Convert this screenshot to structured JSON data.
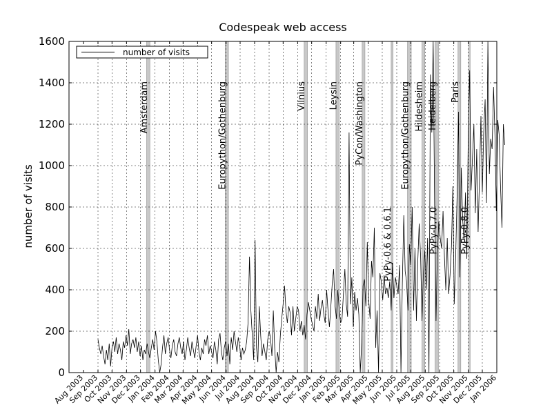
{
  "chart_data": {
    "type": "line",
    "title": "Codespeak web access",
    "xlabel": "",
    "ylabel": "number of visits",
    "ylim": [
      0,
      1600
    ],
    "xlim": [
      "2003-07-01",
      "2006-01-01"
    ],
    "grid": true,
    "legend": {
      "placement": "top-left",
      "entries": [
        "number of visits"
      ]
    },
    "y_ticks": [
      0,
      200,
      400,
      600,
      800,
      1000,
      1200,
      1400,
      1600
    ],
    "x_ticks": [
      {
        "date": "2003-08-01",
        "label": "Aug 2003"
      },
      {
        "date": "2003-09-01",
        "label": "Sep 2003"
      },
      {
        "date": "2003-10-01",
        "label": "Oct 2003"
      },
      {
        "date": "2003-11-01",
        "label": "Nov 2003"
      },
      {
        "date": "2003-12-01",
        "label": "Dec 2003"
      },
      {
        "date": "2004-01-01",
        "label": "Jan 2004"
      },
      {
        "date": "2004-02-01",
        "label": "Feb 2004"
      },
      {
        "date": "2004-03-01",
        "label": "Mar 2004"
      },
      {
        "date": "2004-04-01",
        "label": "Apr 2004"
      },
      {
        "date": "2004-05-01",
        "label": "May 2004"
      },
      {
        "date": "2004-06-01",
        "label": "Jun 2004"
      },
      {
        "date": "2004-07-01",
        "label": "Jul 2004"
      },
      {
        "date": "2004-08-01",
        "label": "Aug 2004"
      },
      {
        "date": "2004-09-01",
        "label": "Sep 2004"
      },
      {
        "date": "2004-10-01",
        "label": "Oct 2004"
      },
      {
        "date": "2004-11-01",
        "label": "Nov 2004"
      },
      {
        "date": "2004-12-01",
        "label": "Dec 2004"
      },
      {
        "date": "2005-01-01",
        "label": "Jan 2005"
      },
      {
        "date": "2005-02-01",
        "label": "Feb 2005"
      },
      {
        "date": "2005-03-01",
        "label": "Mar 2005"
      },
      {
        "date": "2005-04-01",
        "label": "Apr 2005"
      },
      {
        "date": "2005-05-01",
        "label": "May 2005"
      },
      {
        "date": "2005-06-01",
        "label": "Jun 2005"
      },
      {
        "date": "2005-07-01",
        "label": "Jul 2005"
      },
      {
        "date": "2005-08-01",
        "label": "Aug 2005"
      },
      {
        "date": "2005-09-01",
        "label": "Sep 2005"
      },
      {
        "date": "2005-10-01",
        "label": "Oct 2005"
      },
      {
        "date": "2005-11-01",
        "label": "Nov 2005"
      },
      {
        "date": "2005-12-01",
        "label": "Dec 2005"
      },
      {
        "date": "2006-01-01",
        "label": "Jan 2006"
      }
    ],
    "events": [
      {
        "label": "Amsterdam",
        "start": "2003-12-14",
        "end": "2003-12-21"
      },
      {
        "label": "Europython/Gothenburg",
        "start": "2004-05-30",
        "end": "2004-06-06"
      },
      {
        "label": "Vilnius",
        "start": "2004-11-15",
        "end": "2004-11-22"
      },
      {
        "label": "Leysin",
        "start": "2005-01-22",
        "end": "2005-01-29"
      },
      {
        "label": "PyCon/Washington",
        "start": "2005-03-19",
        "end": "2005-03-25"
      },
      {
        "label": "PyPy-0.6 & 0.6.1",
        "start": "2005-05-20",
        "end": "2005-05-24"
      },
      {
        "label": "Europython/Gothenburg",
        "start": "2005-06-24",
        "end": "2005-07-02"
      },
      {
        "label": "Hildesheim",
        "start": "2005-07-25",
        "end": "2005-07-31"
      },
      {
        "label": "PyPy-0.7.0",
        "start": "2005-08-26",
        "end": "2005-08-29"
      },
      {
        "label": "Heidelberg",
        "start": "2005-08-22",
        "end": "2005-08-29"
      },
      {
        "label": "Paris",
        "start": "2005-10-10",
        "end": "2005-10-16"
      },
      {
        "label": "PyPy-0.8.0",
        "start": "2005-11-02",
        "end": "2005-11-04"
      }
    ],
    "series": [
      {
        "name": "number of visits",
        "color": "#000000",
        "sample_interval_days": 3,
        "start": "2003-09-01",
        "values": [
          160,
          120,
          90,
          130,
          80,
          40,
          110,
          60,
          140,
          30,
          120,
          150,
          100,
          170,
          90,
          140,
          110,
          60,
          150,
          120,
          180,
          130,
          210,
          90,
          140,
          160,
          120,
          170,
          100,
          150,
          80,
          130,
          60,
          110,
          90,
          140,
          100,
          70,
          120,
          160,
          110,
          200,
          150,
          60,
          0,
          40,
          120,
          180,
          90,
          140,
          170,
          110,
          70,
          130,
          160,
          100,
          80,
          140,
          170,
          120,
          90,
          150,
          60,
          110,
          170,
          120,
          80,
          150,
          110,
          70,
          130,
          180,
          100,
          60,
          120,
          90,
          160,
          130,
          180,
          90,
          130,
          100,
          70,
          150,
          110,
          40,
          160,
          190,
          100,
          60,
          120,
          150,
          80,
          140,
          40,
          170,
          110,
          200,
          150,
          100,
          170,
          130,
          60,
          120,
          90,
          110,
          150,
          240,
          560,
          300,
          180,
          60,
          640,
          120,
          50,
          320,
          180,
          80,
          140,
          100,
          60,
          160,
          200,
          170,
          80,
          300,
          120,
          0,
          100,
          50,
          180,
          260,
          330,
          420,
          300,
          240,
          320,
          290,
          180,
          320,
          200,
          260,
          320,
          300,
          200,
          250,
          180,
          230,
          160,
          280,
          340,
          300,
          260,
          230,
          200,
          320,
          260,
          380,
          250,
          310,
          350,
          280,
          240,
          400,
          300,
          220,
          320,
          430,
          500,
          320,
          260,
          400,
          300,
          240,
          260,
          380,
          500,
          330,
          270,
          1160,
          330,
          460,
          220,
          390,
          300,
          360,
          280,
          0,
          140,
          420,
          450,
          320,
          630,
          350,
          260,
          540,
          460,
          700,
          120,
          300,
          0,
          480,
          440,
          350,
          470,
          380,
          410,
          360,
          440,
          300,
          530,
          360,
          460,
          420,
          380,
          520,
          0,
          430,
          760,
          490,
          440,
          300,
          620,
          520,
          800,
          300,
          600,
          250,
          540,
          720,
          560,
          250,
          480,
          590,
          400,
          650,
          0,
          1440,
          1160,
          1600,
          800,
          250,
          580,
          730,
          650,
          600,
          780,
          560,
          400,
          650,
          380,
          470,
          610,
          900,
          330,
          560,
          850,
          1260,
          460,
          990,
          740,
          640,
          870,
          550,
          1170,
          1460,
          880,
          1040,
          1200,
          770,
          1080,
          680,
          940,
          1240,
          870,
          1160,
          1320,
          820,
          1600,
          960,
          1130,
          1080,
          1380,
          1150,
          780,
          1220,
          1150,
          900,
          700,
          1200,
          1100
        ]
      }
    ]
  }
}
